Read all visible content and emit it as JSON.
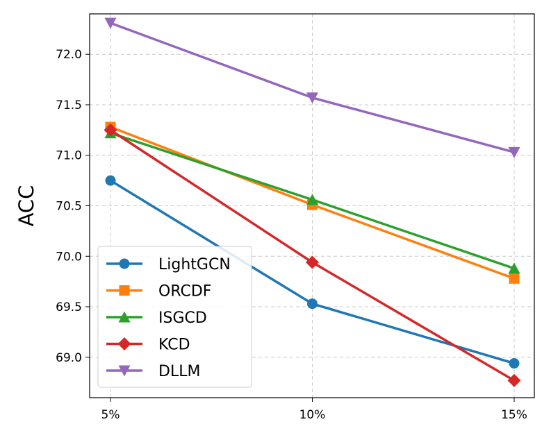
{
  "chart_data": {
    "type": "line",
    "title": "",
    "xlabel": "",
    "ylabel": "ACC",
    "categories": [
      "5%",
      "10%",
      "15%"
    ],
    "ylim": [
      68.6,
      72.4
    ],
    "yticks": [
      69.0,
      69.5,
      70.0,
      70.5,
      71.0,
      71.5,
      72.0
    ],
    "ytick_labels": [
      "69.0",
      "69.5",
      "70.0",
      "70.5",
      "71.0",
      "71.5",
      "72.0"
    ],
    "grid": true,
    "legend_position": "lower-left",
    "series": [
      {
        "name": "LightGCN",
        "values": [
          70.75,
          69.53,
          68.94
        ],
        "color": "#1f77b4",
        "marker": "circle"
      },
      {
        "name": "ORCDF",
        "values": [
          71.28,
          70.51,
          69.78
        ],
        "color": "#ff7f0e",
        "marker": "square"
      },
      {
        "name": "ISGCD",
        "values": [
          71.22,
          70.56,
          69.88
        ],
        "color": "#2ca02c",
        "marker": "triangle-up"
      },
      {
        "name": "KCD",
        "values": [
          71.25,
          69.94,
          68.77
        ],
        "color": "#d62728",
        "marker": "diamond"
      },
      {
        "name": "DLLM",
        "values": [
          72.31,
          71.57,
          71.03
        ],
        "color": "#9467bd",
        "marker": "triangle-down"
      }
    ]
  }
}
